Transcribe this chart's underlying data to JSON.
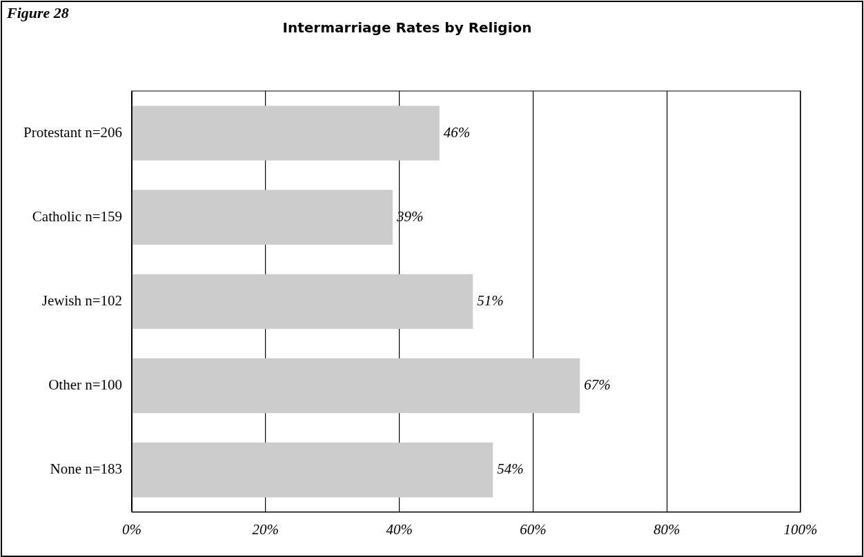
{
  "chart_data": {
    "type": "bar",
    "orientation": "horizontal",
    "title": "Intermarriage Rates by Religion",
    "annotations": [
      "Figure 28"
    ],
    "categories": [
      "Protestant n=206",
      "Catholic n=159",
      "Jewish n=102",
      "Other n=100",
      "None n=183"
    ],
    "values": [
      46,
      39,
      51,
      67,
      54
    ],
    "color": "#cccccc",
    "value_labels": [
      "46%",
      "39%",
      "51%",
      "67%",
      "54%"
    ],
    "xlim": [
      0,
      100
    ],
    "xticks": [
      {
        "value": 0,
        "label": "0%"
      },
      {
        "value": 20,
        "label": "20%"
      },
      {
        "value": 40,
        "label": "40%"
      },
      {
        "value": 60,
        "label": "60%"
      },
      {
        "value": 80,
        "label": "80%"
      },
      {
        "value": 100,
        "label": "100%"
      }
    ],
    "grid": "x",
    "legend": false
  }
}
